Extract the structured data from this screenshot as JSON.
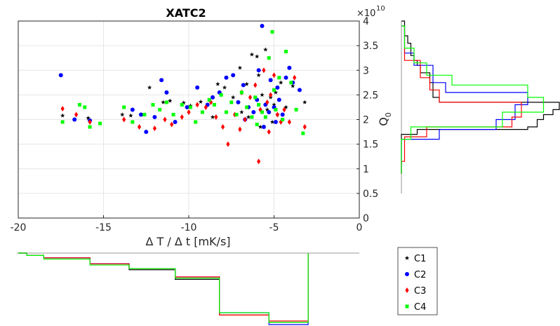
{
  "chart_data": [
    {
      "type": "scatter",
      "title": "XATC2",
      "xlabel": "Δ T / Δ t [mK/s]",
      "ylabel": "Q",
      "ylabel_subscript": "0",
      "y_exponent_label": "×10",
      "y_exponent": "10",
      "xlim": [
        -20,
        0
      ],
      "ylim": [
        0,
        4
      ],
      "xticks": [
        "-20",
        "-15",
        "-10",
        "-5",
        "0"
      ],
      "yticks": [
        "0",
        "0.5",
        "1",
        "1.5",
        "2",
        "2.5",
        "3",
        "3.5",
        "4"
      ],
      "grid": true,
      "legend_position": "bottom-right",
      "series": [
        {
          "name": "C1",
          "color": "#000000",
          "marker": "star",
          "points": [
            [
              -17.4,
              2.08
            ],
            [
              -15.9,
              2.03
            ],
            [
              -13.9,
              2.1
            ],
            [
              -13.4,
              2.08
            ],
            [
              -12.3,
              2.65
            ],
            [
              -11.5,
              2.35
            ],
            [
              -11.1,
              2.38
            ],
            [
              -10.3,
              2.34
            ],
            [
              -9.9,
              2.28
            ],
            [
              -9.3,
              2.36
            ],
            [
              -8.6,
              2.05
            ],
            [
              -8.3,
              2.72
            ],
            [
              -7.9,
              2.65
            ],
            [
              -7.4,
              2.45
            ],
            [
              -7.0,
              3.05
            ],
            [
              -6.9,
              2.15
            ],
            [
              -6.6,
              2.72
            ],
            [
              -6.3,
              3.32
            ],
            [
              -6.0,
              3.28
            ],
            [
              -5.9,
              2.9
            ],
            [
              -5.7,
              2.5
            ],
            [
              -5.5,
              3.42
            ],
            [
              -5.4,
              2.2
            ],
            [
              -5.2,
              2.45
            ],
            [
              -5.1,
              1.95
            ],
            [
              -5.0,
              2.3
            ],
            [
              -4.8,
              2.1
            ],
            [
              -4.6,
              2.75
            ],
            [
              -4.3,
              2.25
            ],
            [
              -4.1,
              3.05
            ],
            [
              -3.9,
              2.68
            ],
            [
              -3.2,
              2.35
            ],
            [
              -6.5,
              2.05
            ],
            [
              -5.8,
              1.85
            ],
            [
              -4.9,
              2.55
            ]
          ]
        },
        {
          "name": "C2",
          "color": "#0000ff",
          "marker": "circle",
          "points": [
            [
              -17.5,
              2.9
            ],
            [
              -16.7,
              2.0
            ],
            [
              -15.8,
              1.98
            ],
            [
              -13.3,
              2.2
            ],
            [
              -12.8,
              2.1
            ],
            [
              -12.5,
              1.75
            ],
            [
              -12.0,
              2.05
            ],
            [
              -11.6,
              2.8
            ],
            [
              -11.3,
              2.55
            ],
            [
              -10.8,
              1.95
            ],
            [
              -10.1,
              2.25
            ],
            [
              -9.5,
              2.65
            ],
            [
              -8.9,
              2.3
            ],
            [
              -8.6,
              2.45
            ],
            [
              -8.2,
              2.55
            ],
            [
              -7.8,
              2.85
            ],
            [
              -7.4,
              2.9
            ],
            [
              -7.1,
              2.35
            ],
            [
              -6.8,
              2.7
            ],
            [
              -6.5,
              2.25
            ],
            [
              -6.2,
              2.15
            ],
            [
              -6.0,
              2.4
            ],
            [
              -5.9,
              3.0
            ],
            [
              -5.7,
              3.9
            ],
            [
              -5.5,
              2.3
            ],
            [
              -5.3,
              2.15
            ],
            [
              -5.2,
              2.8
            ],
            [
              -5.0,
              2.25
            ],
            [
              -4.9,
              1.95
            ],
            [
              -4.7,
              2.4
            ],
            [
              -4.5,
              2.1
            ],
            [
              -4.3,
              2.85
            ],
            [
              -4.1,
              3.05
            ],
            [
              -3.9,
              2.75
            ],
            [
              -3.5,
              2.6
            ],
            [
              -6.7,
              2.0
            ],
            [
              -5.6,
              1.85
            ],
            [
              -4.8,
              2.65
            ]
          ]
        },
        {
          "name": "C3",
          "color": "#ff0000",
          "marker": "diamond",
          "points": [
            [
              -17.4,
              2.22
            ],
            [
              -16.6,
              2.1
            ],
            [
              -15.8,
              1.95
            ],
            [
              -13.8,
              2.0
            ],
            [
              -12.9,
              1.85
            ],
            [
              -12.0,
              1.82
            ],
            [
              -11.4,
              2.0
            ],
            [
              -11.0,
              1.9
            ],
            [
              -10.4,
              2.05
            ],
            [
              -10.0,
              2.15
            ],
            [
              -9.5,
              2.3
            ],
            [
              -9.0,
              2.25
            ],
            [
              -8.7,
              2.35
            ],
            [
              -8.4,
              2.05
            ],
            [
              -8.0,
              1.85
            ],
            [
              -7.7,
              1.5
            ],
            [
              -7.3,
              2.1
            ],
            [
              -7.0,
              1.8
            ],
            [
              -6.7,
              2.0
            ],
            [
              -6.4,
              2.45
            ],
            [
              -6.1,
              2.7
            ],
            [
              -5.9,
              1.15
            ],
            [
              -5.8,
              2.2
            ],
            [
              -5.6,
              3.0
            ],
            [
              -5.4,
              2.35
            ],
            [
              -5.2,
              2.5
            ],
            [
              -5.0,
              2.9
            ],
            [
              -4.8,
              2.1
            ],
            [
              -4.6,
              1.95
            ],
            [
              -4.4,
              2.2
            ],
            [
              -4.1,
              1.95
            ],
            [
              -3.8,
              2.85
            ],
            [
              -3.2,
              1.85
            ],
            [
              -5.3,
              1.75
            ],
            [
              -6.9,
              2.55
            ]
          ]
        },
        {
          "name": "C4",
          "color": "#00ff00",
          "marker": "square",
          "points": [
            [
              -17.4,
              1.95
            ],
            [
              -16.4,
              2.3
            ],
            [
              -16.1,
              2.25
            ],
            [
              -15.8,
              1.85
            ],
            [
              -15.2,
              1.92
            ],
            [
              -13.8,
              2.25
            ],
            [
              -13.3,
              1.95
            ],
            [
              -12.6,
              2.1
            ],
            [
              -12.1,
              2.3
            ],
            [
              -11.7,
              2.2
            ],
            [
              -11.3,
              2.35
            ],
            [
              -10.9,
              2.1
            ],
            [
              -10.4,
              2.3
            ],
            [
              -9.9,
              2.25
            ],
            [
              -9.6,
              1.95
            ],
            [
              -9.2,
              2.15
            ],
            [
              -8.8,
              2.4
            ],
            [
              -8.5,
              2.3
            ],
            [
              -8.1,
              2.5
            ],
            [
              -7.8,
              2.15
            ],
            [
              -7.5,
              2.35
            ],
            [
              -7.2,
              2.1
            ],
            [
              -6.9,
              2.55
            ],
            [
              -6.6,
              2.25
            ],
            [
              -6.3,
              2.05
            ],
            [
              -6.1,
              2.45
            ],
            [
              -5.9,
              2.3
            ],
            [
              -5.7,
              2.15
            ],
            [
              -5.5,
              2.05
            ],
            [
              -5.3,
              3.25
            ],
            [
              -5.1,
              3.78
            ],
            [
              -4.9,
              2.2
            ],
            [
              -4.7,
              2.85
            ],
            [
              -4.5,
              2.0
            ],
            [
              -4.3,
              3.38
            ],
            [
              -4.0,
              2.75
            ],
            [
              -3.7,
              2.2
            ],
            [
              -3.3,
              1.72
            ],
            [
              -5.0,
              2.6
            ],
            [
              -6.0,
              1.9
            ]
          ]
        }
      ]
    },
    {
      "type": "histogram",
      "description_of": "marginal distribution of Q0 (right panel)",
      "series": [
        {
          "name": "C1",
          "color": "#000000",
          "edges": [
            0.9,
            1.7,
            1.8,
            1.85,
            2.0,
            2.1,
            2.2,
            2.35,
            2.45,
            2.75,
            2.95,
            3.1,
            3.2,
            3.3,
            3.55,
            3.7,
            4.0
          ],
          "values": [
            0,
            5,
            40,
            43,
            45,
            48,
            50,
            12,
            10,
            9,
            6,
            5,
            4,
            3,
            2,
            1
          ]
        },
        {
          "name": "C2",
          "color": "#0000ff",
          "edges": [
            0.9,
            1.6,
            1.8,
            2.0,
            2.3,
            2.55,
            2.75,
            3.1,
            3.35,
            3.9
          ],
          "values": [
            0,
            12,
            30,
            36,
            40,
            14,
            10,
            4,
            1
          ]
        },
        {
          "name": "C3",
          "color": "#ff0000",
          "edges": [
            0.9,
            1.15,
            1.65,
            1.85,
            2.05,
            2.35,
            2.6,
            2.85,
            3.2,
            3.9
          ],
          "values": [
            0,
            1,
            8,
            35,
            38,
            12,
            9,
            6,
            1
          ]
        },
        {
          "name": "C4",
          "color": "#00ff00",
          "edges": [
            0.9,
            1.6,
            1.85,
            2.15,
            2.45,
            2.7,
            2.9,
            3.15,
            3.45,
            3.9
          ],
          "values": [
            0,
            3,
            32,
            45,
            40,
            16,
            8,
            4,
            1
          ]
        }
      ]
    },
    {
      "type": "histogram",
      "description_of": "marginal distribution of ΔT/Δt (bottom panel)",
      "series": [
        {
          "name": "C1",
          "color": "#000000",
          "edges": [
            -20,
            -19.5,
            -18.5,
            -15.8,
            -13.5,
            -10.8,
            -8.2,
            -5.3,
            -3.0
          ],
          "values": [
            0,
            2,
            4,
            9,
            14,
            22,
            52,
            58
          ]
        },
        {
          "name": "C2",
          "color": "#0000ff",
          "edges": [
            -20,
            -19.5,
            -18.5,
            -15.8,
            -13.5,
            -10.8,
            -8.2,
            -5.3,
            -3.0
          ],
          "values": [
            0,
            2,
            4,
            9,
            13,
            20,
            50,
            60
          ]
        },
        {
          "name": "C3",
          "color": "#ff0000",
          "edges": [
            -20,
            -19.5,
            -18.5,
            -15.8,
            -13.5,
            -10.8,
            -8.2,
            -5.3,
            -3.0
          ],
          "values": [
            0,
            2,
            4,
            9,
            13,
            20,
            52,
            57
          ]
        },
        {
          "name": "C4",
          "color": "#00ff00",
          "edges": [
            -20,
            -19.5,
            -18.5,
            -15.8,
            -13.5,
            -10.8,
            -8.2,
            -5.3,
            -3.0
          ],
          "values": [
            0,
            2,
            5,
            10,
            13,
            21,
            50,
            58
          ]
        }
      ]
    }
  ]
}
